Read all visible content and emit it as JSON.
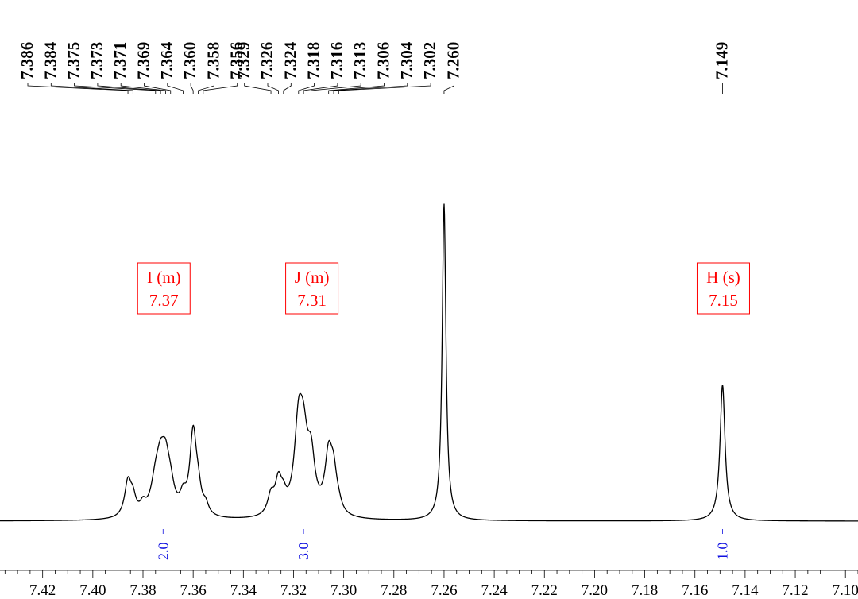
{
  "chart_data": {
    "type": "line",
    "x_axis": {
      "reversed": true,
      "min": 7.095,
      "max": 7.437,
      "tick_labels": [
        "7.42",
        "7.40",
        "7.38",
        "7.36",
        "7.34",
        "7.32",
        "7.30",
        "7.28",
        "7.26",
        "7.24",
        "7.22",
        "7.20",
        "7.18",
        "7.16",
        "7.14",
        "7.12",
        "7.10"
      ],
      "minor_step": 0.005
    },
    "peak_labels": [
      "7.386",
      "7.384",
      "7.375",
      "7.373",
      "7.371",
      "7.369",
      "7.364",
      "7.360",
      "7.358",
      "7.356",
      "7.329",
      "7.326",
      "7.324",
      "7.318",
      "7.316",
      "7.313",
      "7.306",
      "7.304",
      "7.302",
      "7.260",
      "7.149"
    ],
    "multiplets": [
      {
        "label": "I (m)",
        "shift": "7.37",
        "x": 7.372
      },
      {
        "label": "J (m)",
        "shift": "7.31",
        "x": 7.313
      },
      {
        "label": "H (s)",
        "shift": "7.15",
        "x": 7.149
      }
    ],
    "integrals": [
      {
        "value": "2.0",
        "x": 7.372
      },
      {
        "value": "3.0",
        "x": 7.316
      },
      {
        "value": "1.0",
        "x": 7.149
      }
    ],
    "peaks": [
      {
        "x": 7.386,
        "h": 0.11,
        "w": 0.0016
      },
      {
        "x": 7.384,
        "h": 0.05,
        "w": 0.0014
      },
      {
        "x": 7.38,
        "h": 0.03,
        "w": 0.0014
      },
      {
        "x": 7.375,
        "h": 0.09,
        "w": 0.0022
      },
      {
        "x": 7.373,
        "h": 0.12,
        "w": 0.002
      },
      {
        "x": 7.371,
        "h": 0.14,
        "w": 0.002
      },
      {
        "x": 7.369,
        "h": 0.06,
        "w": 0.0018
      },
      {
        "x": 7.364,
        "h": 0.05,
        "w": 0.0015
      },
      {
        "x": 7.36,
        "h": 0.26,
        "w": 0.0016
      },
      {
        "x": 7.358,
        "h": 0.06,
        "w": 0.0014
      },
      {
        "x": 7.355,
        "h": 0.03,
        "w": 0.0014
      },
      {
        "x": 7.329,
        "h": 0.06,
        "w": 0.0016
      },
      {
        "x": 7.326,
        "h": 0.1,
        "w": 0.0016
      },
      {
        "x": 7.324,
        "h": 0.04,
        "w": 0.0014
      },
      {
        "x": 7.318,
        "h": 0.26,
        "w": 0.002
      },
      {
        "x": 7.316,
        "h": 0.19,
        "w": 0.002
      },
      {
        "x": 7.313,
        "h": 0.16,
        "w": 0.0018
      },
      {
        "x": 7.306,
        "h": 0.18,
        "w": 0.0018
      },
      {
        "x": 7.304,
        "h": 0.11,
        "w": 0.0016
      },
      {
        "x": 7.302,
        "h": 0.02,
        "w": 0.0014
      },
      {
        "x": 7.26,
        "h": 1.0,
        "w": 0.0009
      },
      {
        "x": 7.149,
        "h": 0.43,
        "w": 0.0012
      }
    ]
  }
}
